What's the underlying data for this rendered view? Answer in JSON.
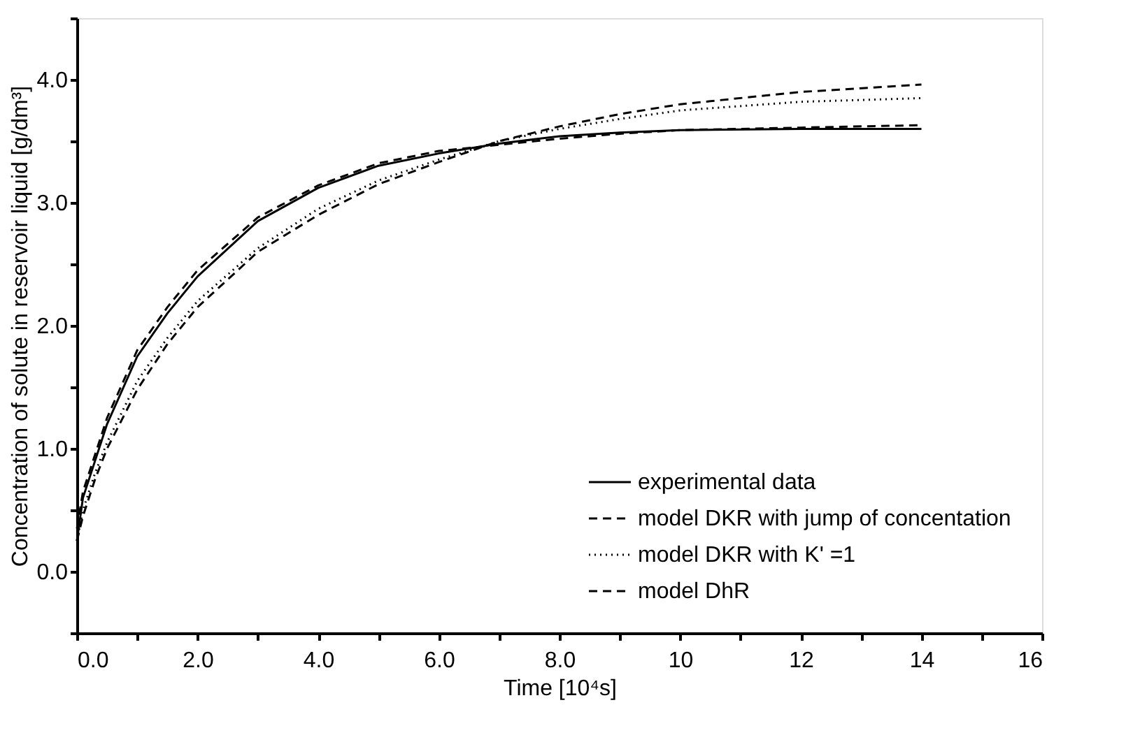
{
  "chart_data": {
    "type": "line",
    "xlabel": "Time [10⁴s]",
    "ylabel": "Concentration of solute in reservoir liquid [g/dm³]",
    "x": [
      0,
      0.1,
      0.3,
      0.5,
      1,
      1.5,
      2,
      3,
      4,
      5,
      6,
      7,
      8,
      9,
      10,
      12,
      14
    ],
    "series": [
      {
        "name": "experimental data",
        "color": "#000000",
        "line_style": "solid",
        "values": [
          0.25,
          0.6,
          0.9,
          1.2,
          1.75,
          2.1,
          2.4,
          2.85,
          3.12,
          3.3,
          3.4,
          3.48,
          3.54,
          3.57,
          3.59,
          3.6,
          3.6
        ]
      },
      {
        "name": "model DKR with jump of concentation",
        "color": "#000000",
        "line_style": "dashed",
        "values": [
          0.35,
          0.65,
          0.95,
          1.25,
          1.8,
          2.15,
          2.45,
          2.88,
          3.14,
          3.32,
          3.42,
          3.47,
          3.52,
          3.56,
          3.59,
          3.61,
          3.63
        ]
      },
      {
        "name": "model DKR with K' =1",
        "color": "#000000",
        "line_style": "dotted",
        "values": [
          0.25,
          0.5,
          0.8,
          1.05,
          1.55,
          1.9,
          2.2,
          2.63,
          2.95,
          3.18,
          3.35,
          3.5,
          3.6,
          3.68,
          3.75,
          3.82,
          3.85
        ]
      },
      {
        "name": "model DhR",
        "color": "#000000",
        "line_style": "dashed",
        "values": [
          0.25,
          0.45,
          0.75,
          1.0,
          1.48,
          1.85,
          2.15,
          2.6,
          2.9,
          3.15,
          3.33,
          3.5,
          3.62,
          3.72,
          3.8,
          3.9,
          3.96
        ]
      }
    ],
    "xlim": [
      0,
      16
    ],
    "xticks": [
      {
        "value": 0,
        "label": "0.0"
      },
      {
        "value": 1,
        "label": null
      },
      {
        "value": 2,
        "label": "2.0"
      },
      {
        "value": 3,
        "label": null
      },
      {
        "value": 4,
        "label": "4.0"
      },
      {
        "value": 5,
        "label": null
      },
      {
        "value": 6,
        "label": "6.0"
      },
      {
        "value": 7,
        "label": null
      },
      {
        "value": 8,
        "label": "8.0"
      },
      {
        "value": 9,
        "label": null
      },
      10,
      {
        "value": 11,
        "label": null
      },
      12,
      {
        "value": 13,
        "label": null
      },
      14,
      {
        "value": 15,
        "label": null
      },
      16
    ],
    "ylim": [
      -0.5,
      4.5
    ],
    "yticks": [
      {
        "value": -0.5,
        "label": null
      },
      {
        "value": 0,
        "label": "0.0"
      },
      {
        "value": 0.5,
        "label": null
      },
      {
        "value": 1,
        "label": "1.0"
      },
      {
        "value": 1.5,
        "label": null
      },
      {
        "value": 2,
        "label": "2.0"
      },
      {
        "value": 2.5,
        "label": null
      },
      {
        "value": 3,
        "label": "3.0"
      },
      {
        "value": 3.5,
        "label": null
      },
      {
        "value": 4,
        "label": "4.0"
      },
      {
        "value": 4.5,
        "label": null
      }
    ],
    "grid": false,
    "legend": "bottom right",
    "marker": "none"
  }
}
